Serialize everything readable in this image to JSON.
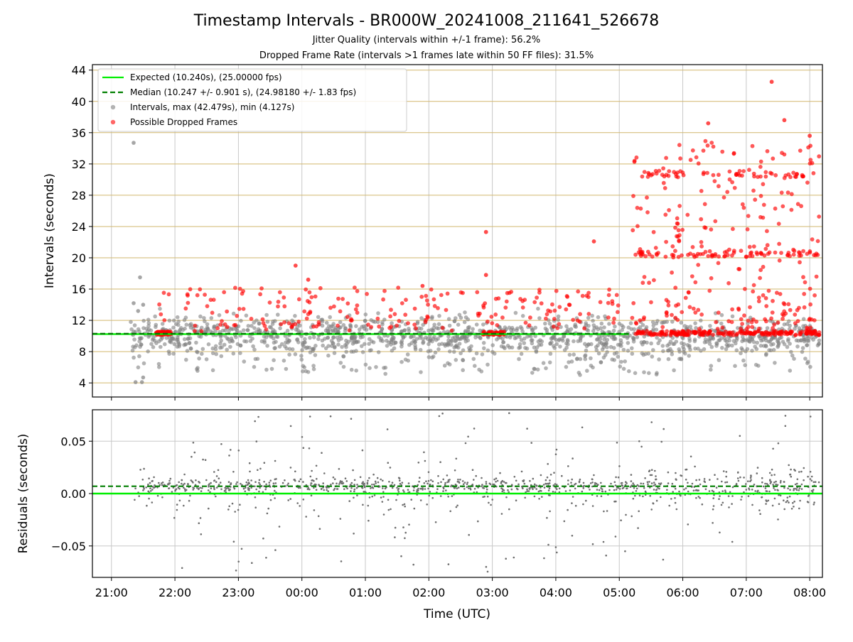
{
  "colors": {
    "expected": "#00ee00",
    "median": "#007f00",
    "interval_point": "#808080",
    "dropped_point": "#ff0000",
    "hgrid_top": "#d2b76e",
    "grid": "#c8c8c8",
    "residual_point": "#6e6e6e"
  },
  "chart_data": [
    {
      "type": "scatter",
      "panel": "intervals",
      "title": "Timestamp Intervals - BR000W_20241008_211641_526678",
      "subtitle_lines": [
        "Jitter Quality (intervals within +/-1 frame): 56.2%",
        "Dropped Frame Rate (intervals >1 frames late within 50 FF files): 31.5%"
      ],
      "xlabel": "",
      "ylabel": "Intervals (seconds)",
      "x_unit": "hours since 21:00 UTC (tick labels show clock time)",
      "xlim": [
        -0.3,
        11.2
      ],
      "ylim": [
        2.2,
        44.7
      ],
      "yticks": [
        4,
        8,
        12,
        16,
        20,
        24,
        28,
        32,
        36,
        40,
        44
      ],
      "xticks": [
        0,
        1,
        2,
        3,
        4,
        5,
        6,
        7,
        8,
        9,
        10,
        11
      ],
      "xtick_labels": [
        "21:00",
        "22:00",
        "23:00",
        "00:00",
        "01:00",
        "02:00",
        "03:00",
        "04:00",
        "05:00",
        "06:00",
        "07:00",
        "08:00"
      ],
      "grid": true,
      "legend_position": "top-left",
      "expected_value": 10.24,
      "median_value": 10.247,
      "outlier_points": {
        "intervals": [
          [
            0.35,
            34.7
          ],
          [
            0.45,
            17.5
          ],
          [
            0.35,
            14.2
          ],
          [
            0.42,
            13.2
          ],
          [
            0.5,
            14.0
          ],
          [
            0.38,
            4.1
          ],
          [
            0.48,
            4.1
          ],
          [
            0.5,
            4.7
          ]
        ],
        "dropped": [
          [
            2.9,
            19.0
          ],
          [
            3.1,
            17.2
          ],
          [
            4.9,
            16.4
          ],
          [
            5.9,
            23.3
          ],
          [
            5.9,
            17.8
          ],
          [
            7.6,
            22.1
          ],
          [
            10.4,
            42.5
          ],
          [
            10.6,
            37.6
          ],
          [
            9.4,
            37.2
          ],
          [
            11.0,
            35.6
          ]
        ]
      },
      "series": [
        {
          "name": "Expected (10.240s), (25.00000 fps)",
          "kind": "line",
          "style": "solid"
        },
        {
          "name": "Median (10.247 +/- 0.901 s), (24.98180 +/- 1.83 fps)",
          "kind": "line",
          "style": "dashed"
        },
        {
          "name": "Intervals, max (42.479s), min (4.127s)",
          "kind": "points",
          "count": 1400
        },
        {
          "name": "Possible Dropped Frames",
          "kind": "points",
          "count": 900
        }
      ]
    },
    {
      "type": "scatter",
      "panel": "residuals",
      "xlabel": "Time (UTC)",
      "ylabel": "Residuals (seconds)",
      "x_unit": "hours since 21:00 UTC (tick labels show clock time)",
      "xlim": [
        -0.3,
        11.2
      ],
      "ylim": [
        -0.08,
        0.08
      ],
      "yticks": [
        -0.05,
        0.0,
        0.05
      ],
      "ytick_labels": [
        "−0.05",
        "0.00",
        "0.05"
      ],
      "xticks": [
        0,
        1,
        2,
        3,
        4,
        5,
        6,
        7,
        8,
        9,
        10,
        11
      ],
      "xtick_labels": [
        "21:00",
        "22:00",
        "23:00",
        "00:00",
        "01:00",
        "02:00",
        "03:00",
        "04:00",
        "05:00",
        "06:00",
        "07:00",
        "08:00"
      ],
      "grid": true,
      "expected_value": 0.0,
      "median_value": 0.007
    }
  ]
}
